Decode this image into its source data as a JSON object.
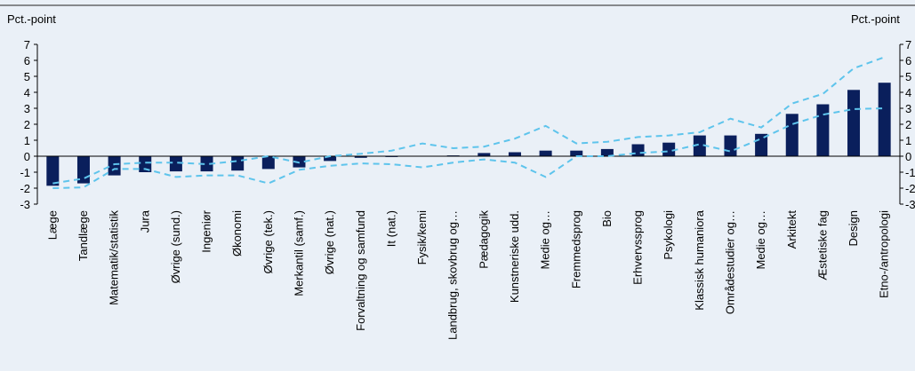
{
  "chart_data": {
    "type": "bar",
    "ylabel_left": "Pct.-point",
    "ylabel_right": "Pct.-point",
    "ylim": [
      -3,
      7
    ],
    "yticks": [
      -3,
      -2,
      -1,
      0,
      1,
      2,
      3,
      4,
      5,
      6,
      7
    ],
    "grid": false,
    "legend": "none",
    "categories": [
      "Læge",
      "Tandlæge",
      "Matematik/statistik",
      "Jura",
      "Øvrige (sund.)",
      "Ingeniør",
      "Økonomi",
      "Øvrige (tek.)",
      "Merkantil (samf.)",
      "Øvrige (nat.)",
      "Forvaltning og samfund",
      "It (nat.)",
      "Fysik/kemi",
      "Landbrug, skovbrug og…",
      "Pædagogik",
      "Kunstneriske udd.",
      "Medie og…",
      "Fremmedsprog",
      "Bio",
      "Erhvervssprog",
      "Psykologi",
      "Klassisk humaniora",
      "Områdestudier og…",
      "Medie og…",
      "Arkitekt",
      "Æstetiske fag",
      "Design",
      "Etno-/antropologi"
    ],
    "series": [
      {
        "type": "bar",
        "color": "#0a1f5c",
        "values": [
          -1.85,
          -1.7,
          -1.2,
          -1.0,
          -0.95,
          -0.95,
          -0.9,
          -0.8,
          -0.7,
          -0.3,
          -0.1,
          -0.05,
          0.0,
          0.05,
          0.2,
          0.25,
          0.35,
          0.35,
          0.45,
          0.75,
          0.85,
          1.3,
          1.3,
          1.4,
          2.65,
          3.25,
          4.15,
          4.6
        ]
      },
      {
        "type": "line",
        "style": "dashed",
        "color": "#5ec4ec",
        "values": [
          -1.7,
          -1.4,
          -0.5,
          -0.4,
          -0.4,
          -0.5,
          -0.3,
          0.0,
          -0.4,
          0.0,
          0.15,
          0.35,
          0.8,
          0.5,
          0.6,
          1.1,
          1.9,
          0.8,
          0.9,
          1.2,
          1.3,
          1.5,
          2.35,
          1.8,
          3.3,
          3.9,
          5.5,
          6.2
        ]
      },
      {
        "type": "line",
        "style": "dashed",
        "color": "#5ec4ec",
        "values": [
          -2.0,
          -1.95,
          -0.8,
          -0.8,
          -1.3,
          -1.2,
          -1.2,
          -1.7,
          -0.85,
          -0.6,
          -0.45,
          -0.5,
          -0.7,
          -0.4,
          -0.2,
          -0.4,
          -1.3,
          0.0,
          0.0,
          0.2,
          0.3,
          0.75,
          0.3,
          1.1,
          2.0,
          2.6,
          2.95,
          3.0
        ]
      }
    ]
  }
}
